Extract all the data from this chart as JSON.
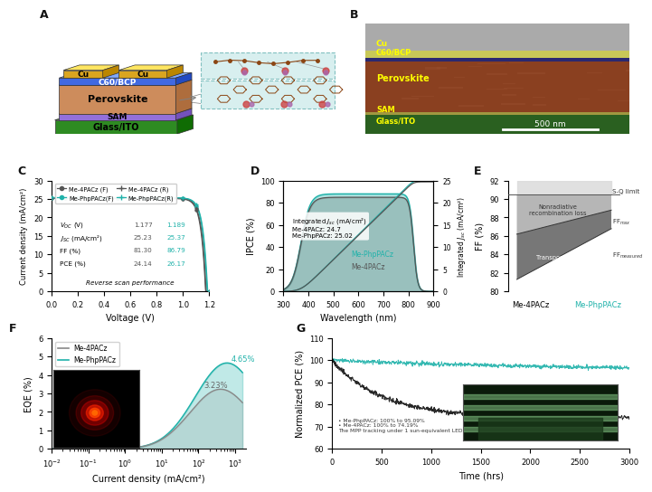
{
  "panel_C": {
    "voc_me4pacz": 1.177,
    "voc_mephppacz": 1.189,
    "jsc_me4pacz": 25.23,
    "jsc_mephppacz": 25.37,
    "ff_me4pacz": 81.3,
    "ff_mephppacz": 86.79,
    "pce_me4pacz": 24.14,
    "pce_mephppacz": 26.17,
    "color_me4pacz": "#555555",
    "color_mephppacz": "#20B2AA",
    "xlabel": "Voltage (V)",
    "ylabel": "Current density (mA/cm²)",
    "xlim": [
      0.0,
      1.2
    ],
    "ylim": [
      0,
      30
    ],
    "note": "Reverse scan performance"
  },
  "panel_D": {
    "color_ipce_me4pacz": "#555555",
    "color_ipce_mephppacz": "#20B2AA",
    "jsc_me4pacz": 24.7,
    "jsc_mephppacz": 25.02,
    "xlabel": "Wavelength (nm)",
    "ylabel_left": "IPCE (%)",
    "ylabel_right": "Integrated J_sc (mA/cm²)",
    "xlim": [
      300,
      900
    ],
    "ylim_left": [
      0,
      100
    ],
    "ylim_right": [
      0,
      25
    ]
  },
  "panel_E": {
    "ylabel": "FF (%)",
    "ylim": [
      80,
      92
    ],
    "labels": [
      "Me-4PACz",
      "Me-PhpPACz"
    ],
    "sq_limit": 90.5,
    "ffmax_me4pacz": 86.2,
    "ffmax_mephppacz": 88.8,
    "ffmeasured_me4pacz": 81.3,
    "ffmeasured_mephppacz": 86.79,
    "color_mephppacz": "#20B2AA"
  },
  "panel_F": {
    "xlabel": "Current density (mA/cm²)",
    "ylabel": "EQE (%)",
    "ylim": [
      0,
      6
    ],
    "peak_me4pacz": 3.23,
    "peak_mephppacz": 4.65,
    "color_me4pacz": "#AAAAAA",
    "color_mephppacz": "#20B2AA",
    "label_me4pacz": "Me-4PACz",
    "label_mephppacz": "Me-PhpPACz"
  },
  "panel_G": {
    "xlabel": "Time (hrs)",
    "ylabel": "Normalized PCE (%)",
    "xlim": [
      0,
      3000
    ],
    "ylim": [
      60,
      110
    ],
    "label_mephppacz": "Me-PhpPACz: 100% to 95.09%",
    "label_me4pacz": "Me-4PACz: 100% to 74.19%",
    "note": "The MPP tracking under 1 sun-equivalent LED illumination in N₂ (50±10 °C, ISOS-L-1I)",
    "color_mephppacz": "#20B2AA",
    "color_me4pacz": "#111111"
  },
  "bg_color": "#ffffff",
  "panel_label_color": "#111111",
  "panel_label_size": 9,
  "layer_colors": {
    "Cu": "#DAA520",
    "C60BCP": "#4169E1",
    "Perovskite": "#CD8C5C",
    "SAM": "#9370DB",
    "GlassITO": "#2E8B22"
  },
  "sem_colors": {
    "bg": "#888888",
    "Cu": "#C8C860",
    "C60BCP": "#3A3580",
    "Perovskite": "#9A5530",
    "SAM": "#B8A840",
    "GlassITO": "#2A6A2A"
  }
}
